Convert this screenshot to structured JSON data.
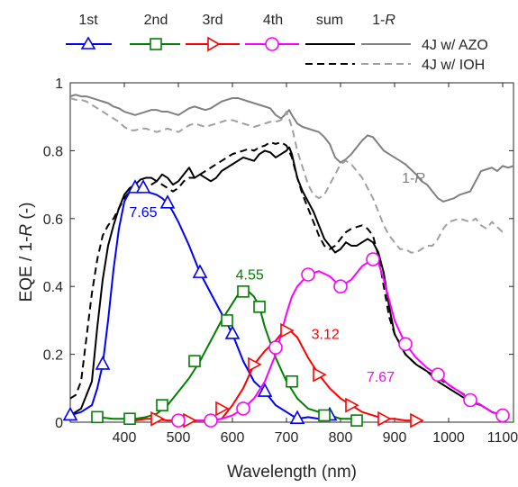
{
  "chart_data": {
    "type": "line",
    "xlabel": "Wavelength (nm)",
    "ylabel": "EQE / 1-R (-)",
    "xlim": [
      300,
      1120
    ],
    "ylim": [
      0,
      1
    ],
    "xticks": [
      400,
      500,
      600,
      700,
      800,
      900,
      1000,
      1100
    ],
    "yticks": [
      0,
      0.2,
      0.4,
      0.6,
      0.8,
      1
    ],
    "ytick_labels": [
      "0",
      "0.2",
      "0.4",
      "0.6",
      "0.8",
      "1"
    ],
    "grid": false,
    "legend": {
      "position": "top",
      "row1": [
        "1st",
        "2nd",
        "3rd",
        "4th",
        "sum",
        "1-R"
      ],
      "row1_label": "4J w/ AZO",
      "row2_label": "4J w/ IOH"
    },
    "annotations": [
      {
        "text": "7.65",
        "x": 435,
        "y": 0.605,
        "color": "#0000ff"
      },
      {
        "text": "4.55",
        "x": 632,
        "y": 0.42,
        "color": "#008000"
      },
      {
        "text": "3.12",
        "x": 772,
        "y": 0.245,
        "color": "#ff0000"
      },
      {
        "text": "7.67",
        "x": 874,
        "y": 0.12,
        "color": "#ff00ff"
      },
      {
        "text": "1-R",
        "x": 935,
        "y": 0.705,
        "color": "#808080"
      }
    ],
    "series": [
      {
        "name": "1st",
        "color": "#0000ff",
        "marker": "triangle-up",
        "x": [
          300,
          320,
          340,
          350,
          360,
          370,
          380,
          390,
          400,
          410,
          420,
          430,
          440,
          450,
          460,
          470,
          480,
          490,
          500,
          520,
          540,
          560,
          580,
          600,
          620,
          640,
          660,
          680,
          700,
          720,
          740,
          760,
          780,
          800
        ],
        "y": [
          0.02,
          0.03,
          0.05,
          0.1,
          0.17,
          0.3,
          0.45,
          0.57,
          0.65,
          0.68,
          0.69,
          0.69,
          0.68,
          0.675,
          0.67,
          0.66,
          0.645,
          0.62,
          0.59,
          0.52,
          0.44,
          0.38,
          0.32,
          0.26,
          0.18,
          0.12,
          0.09,
          0.05,
          0.03,
          0.01,
          0.015,
          0.01,
          0.02,
          0.01
        ],
        "marker_x": [
          300,
          360,
          420,
          435,
          480,
          540,
          600,
          660,
          720,
          780
        ],
        "marker_y": [
          0.02,
          0.17,
          0.69,
          0.69,
          0.645,
          0.44,
          0.26,
          0.09,
          0.01,
          0.02
        ]
      },
      {
        "name": "2nd",
        "color": "#008000",
        "marker": "square",
        "x": [
          350,
          380,
          400,
          420,
          440,
          460,
          480,
          500,
          520,
          540,
          560,
          580,
          600,
          610,
          620,
          630,
          640,
          650,
          660,
          680,
          700,
          720,
          740,
          760,
          780,
          800,
          820,
          840
        ],
        "y": [
          0.015,
          0.01,
          0.01,
          0.01,
          0.015,
          0.025,
          0.05,
          0.09,
          0.13,
          0.18,
          0.24,
          0.3,
          0.35,
          0.375,
          0.385,
          0.385,
          0.37,
          0.34,
          0.28,
          0.19,
          0.12,
          0.07,
          0.04,
          0.03,
          0.02,
          0.01,
          0.01,
          0.005
        ],
        "marker_x": [
          350,
          410,
          470,
          530,
          590,
          650,
          710,
          770,
          830
        ],
        "marker_y": [
          0.015,
          0.01,
          0.05,
          0.18,
          0.3,
          0.34,
          0.12,
          0.02,
          0.005
        ],
        "marker_x_extra": [
          620
        ],
        "marker_y_extra": [
          0.385
        ]
      },
      {
        "name": "3rd",
        "color": "#ff0000",
        "marker": "triangle-right",
        "x": [
          400,
          420,
          440,
          460,
          480,
          500,
          520,
          540,
          560,
          580,
          590,
          600,
          620,
          640,
          660,
          680,
          690,
          700,
          710,
          720,
          740,
          760,
          780,
          800,
          820,
          840,
          860,
          880,
          900,
          920,
          940,
          950
        ],
        "y": [
          0.01,
          0.005,
          0.01,
          0.01,
          0.005,
          0.005,
          0.005,
          0.005,
          0.005,
          0.01,
          0.03,
          0.05,
          0.1,
          0.17,
          0.21,
          0.24,
          0.26,
          0.27,
          0.265,
          0.25,
          0.19,
          0.14,
          0.1,
          0.07,
          0.05,
          0.03,
          0.02,
          0.01,
          0.01,
          0.005,
          0.005,
          0.005
        ],
        "marker_x": [
          460,
          520,
          580,
          640,
          700,
          760,
          820,
          880,
          940
        ],
        "marker_y": [
          0.01,
          0.005,
          0.04,
          0.17,
          0.27,
          0.14,
          0.05,
          0.01,
          0.005
        ]
      },
      {
        "name": "4th",
        "color": "#ff00ff",
        "marker": "circle",
        "x": [
          500,
          540,
          560,
          580,
          600,
          620,
          640,
          660,
          680,
          690,
          700,
          710,
          720,
          740,
          760,
          780,
          800,
          820,
          840,
          860,
          870,
          880,
          900,
          920,
          940,
          960,
          980,
          1000,
          1020,
          1040,
          1060,
          1080,
          1100
        ],
        "y": [
          0.005,
          0.005,
          0.005,
          0.01,
          0.02,
          0.04,
          0.07,
          0.12,
          0.2,
          0.26,
          0.32,
          0.37,
          0.4,
          0.435,
          0.445,
          0.43,
          0.4,
          0.42,
          0.46,
          0.48,
          0.47,
          0.42,
          0.3,
          0.23,
          0.19,
          0.16,
          0.14,
          0.11,
          0.09,
          0.065,
          0.05,
          0.03,
          0.02
        ],
        "marker_x": [
          500,
          560,
          620,
          680,
          740,
          800,
          860,
          920,
          980,
          1040,
          1100
        ],
        "marker_y": [
          0.005,
          0.005,
          0.04,
          0.22,
          0.435,
          0.4,
          0.48,
          0.23,
          0.14,
          0.065,
          0.02
        ]
      },
      {
        "name": "sum (4J w/ AZO)",
        "color": "#000000",
        "dash": "solid",
        "x": [
          300,
          320,
          340,
          350,
          360,
          370,
          380,
          390,
          400,
          410,
          420,
          430,
          440,
          450,
          460,
          470,
          480,
          490,
          500,
          510,
          520,
          530,
          540,
          550,
          560,
          570,
          580,
          590,
          600,
          610,
          620,
          630,
          640,
          650,
          660,
          670,
          680,
          690,
          700,
          705,
          710,
          720,
          730,
          740,
          750,
          760,
          770,
          780,
          790,
          800,
          810,
          820,
          830,
          840,
          850,
          860,
          870,
          880,
          890,
          900,
          920,
          940,
          960,
          980,
          1000,
          1020,
          1040,
          1060,
          1080,
          1100
        ],
        "y": [
          0.02,
          0.04,
          0.12,
          0.28,
          0.42,
          0.52,
          0.58,
          0.63,
          0.67,
          0.69,
          0.7,
          0.715,
          0.72,
          0.72,
          0.71,
          0.73,
          0.72,
          0.7,
          0.71,
          0.73,
          0.75,
          0.72,
          0.73,
          0.72,
          0.71,
          0.72,
          0.74,
          0.75,
          0.76,
          0.77,
          0.78,
          0.775,
          0.77,
          0.79,
          0.8,
          0.795,
          0.78,
          0.79,
          0.8,
          0.81,
          0.79,
          0.72,
          0.68,
          0.65,
          0.62,
          0.58,
          0.54,
          0.52,
          0.5,
          0.51,
          0.53,
          0.52,
          0.52,
          0.53,
          0.54,
          0.53,
          0.5,
          0.44,
          0.34,
          0.26,
          0.2,
          0.17,
          0.15,
          0.12,
          0.1,
          0.08,
          0.06,
          0.05,
          0.03,
          0.02
        ]
      },
      {
        "name": "sum (4J w/ IOH)",
        "color": "#000000",
        "dash": "8,5",
        "x": [
          300,
          310,
          320,
          330,
          340,
          350,
          360,
          370,
          380,
          390,
          400,
          410,
          420,
          430,
          440,
          450,
          460,
          470,
          480,
          490,
          500,
          510,
          520,
          530,
          540,
          550,
          560,
          570,
          580,
          590,
          600,
          610,
          620,
          630,
          640,
          650,
          660,
          670,
          680,
          690,
          700,
          710,
          720,
          730,
          740,
          750,
          760,
          770,
          780,
          790,
          800,
          810,
          820,
          830,
          840,
          850,
          860,
          870,
          880,
          890,
          900,
          920,
          940,
          960,
          980,
          1000,
          1020,
          1040,
          1060,
          1080,
          1100
        ],
        "y": [
          0.07,
          0.08,
          0.12,
          0.25,
          0.38,
          0.48,
          0.55,
          0.58,
          0.6,
          0.63,
          0.66,
          0.68,
          0.69,
          0.7,
          0.69,
          0.7,
          0.71,
          0.7,
          0.69,
          0.68,
          0.69,
          0.71,
          0.72,
          0.72,
          0.73,
          0.74,
          0.75,
          0.76,
          0.77,
          0.78,
          0.79,
          0.795,
          0.8,
          0.805,
          0.8,
          0.81,
          0.815,
          0.825,
          0.82,
          0.825,
          0.815,
          0.78,
          0.72,
          0.67,
          0.63,
          0.59,
          0.55,
          0.52,
          0.51,
          0.52,
          0.54,
          0.56,
          0.57,
          0.575,
          0.58,
          0.57,
          0.55,
          0.49,
          0.4,
          0.31,
          0.26,
          0.2,
          0.17,
          0.15,
          0.13,
          0.11,
          0.09,
          0.07,
          0.05,
          0.03,
          0.02
        ]
      },
      {
        "name": "1-R (4J w/ AZO)",
        "color": "#808080",
        "dash": "solid",
        "x": [
          300,
          310,
          320,
          330,
          340,
          350,
          360,
          370,
          380,
          390,
          400,
          410,
          420,
          430,
          440,
          450,
          460,
          470,
          480,
          490,
          500,
          510,
          520,
          530,
          540,
          550,
          560,
          570,
          580,
          590,
          600,
          610,
          620,
          630,
          640,
          650,
          660,
          670,
          680,
          690,
          700,
          705,
          710,
          720,
          730,
          740,
          750,
          760,
          770,
          780,
          790,
          800,
          810,
          820,
          830,
          840,
          850,
          860,
          870,
          880,
          890,
          900,
          910,
          920,
          930,
          940,
          950,
          960,
          970,
          980,
          990,
          1000,
          1010,
          1020,
          1030,
          1040,
          1050,
          1060,
          1070,
          1080,
          1090,
          1100,
          1110,
          1120
        ],
        "y": [
          0.96,
          0.965,
          0.96,
          0.96,
          0.955,
          0.95,
          0.945,
          0.94,
          0.93,
          0.925,
          0.915,
          0.91,
          0.905,
          0.91,
          0.915,
          0.92,
          0.92,
          0.915,
          0.915,
          0.91,
          0.905,
          0.915,
          0.925,
          0.93,
          0.925,
          0.92,
          0.925,
          0.935,
          0.945,
          0.95,
          0.955,
          0.955,
          0.95,
          0.945,
          0.94,
          0.935,
          0.93,
          0.925,
          0.905,
          0.895,
          0.91,
          0.92,
          0.905,
          0.88,
          0.87,
          0.865,
          0.86,
          0.855,
          0.84,
          0.82,
          0.78,
          0.765,
          0.775,
          0.79,
          0.81,
          0.83,
          0.845,
          0.84,
          0.82,
          0.8,
          0.79,
          0.78,
          0.77,
          0.76,
          0.745,
          0.73,
          0.71,
          0.7,
          0.68,
          0.66,
          0.65,
          0.655,
          0.66,
          0.67,
          0.675,
          0.68,
          0.71,
          0.74,
          0.745,
          0.75,
          0.74,
          0.755,
          0.75,
          0.755
        ]
      },
      {
        "name": "1-R (4J w/ IOH)",
        "color": "#a0a0a0",
        "dash": "8,5",
        "x": [
          300,
          310,
          320,
          330,
          340,
          350,
          360,
          370,
          380,
          390,
          400,
          410,
          420,
          430,
          440,
          450,
          460,
          470,
          480,
          490,
          500,
          510,
          520,
          530,
          540,
          550,
          560,
          570,
          580,
          590,
          600,
          610,
          620,
          630,
          640,
          650,
          660,
          670,
          680,
          690,
          700,
          710,
          720,
          730,
          740,
          750,
          760,
          770,
          780,
          790,
          800,
          810,
          820,
          830,
          840,
          850,
          860,
          870,
          880,
          890,
          900,
          910,
          920,
          930,
          940,
          950,
          960,
          970,
          980,
          990,
          1000,
          1010,
          1020,
          1030,
          1040,
          1050,
          1060,
          1070,
          1080,
          1090,
          1100
        ],
        "y": [
          0.955,
          0.95,
          0.95,
          0.945,
          0.935,
          0.925,
          0.915,
          0.905,
          0.895,
          0.885,
          0.87,
          0.86,
          0.86,
          0.865,
          0.865,
          0.86,
          0.855,
          0.86,
          0.865,
          0.86,
          0.855,
          0.865,
          0.875,
          0.88,
          0.875,
          0.87,
          0.875,
          0.88,
          0.885,
          0.89,
          0.89,
          0.885,
          0.88,
          0.875,
          0.87,
          0.875,
          0.88,
          0.885,
          0.885,
          0.89,
          0.915,
          0.87,
          0.8,
          0.75,
          0.7,
          0.67,
          0.66,
          0.67,
          0.7,
          0.73,
          0.76,
          0.77,
          0.76,
          0.74,
          0.72,
          0.69,
          0.66,
          0.62,
          0.58,
          0.55,
          0.53,
          0.51,
          0.51,
          0.5,
          0.5,
          0.51,
          0.52,
          0.52,
          0.54,
          0.57,
          0.59,
          0.595,
          0.6,
          0.595,
          0.59,
          0.6,
          0.58,
          0.57,
          0.59,
          0.575,
          0.56
        ]
      }
    ]
  }
}
